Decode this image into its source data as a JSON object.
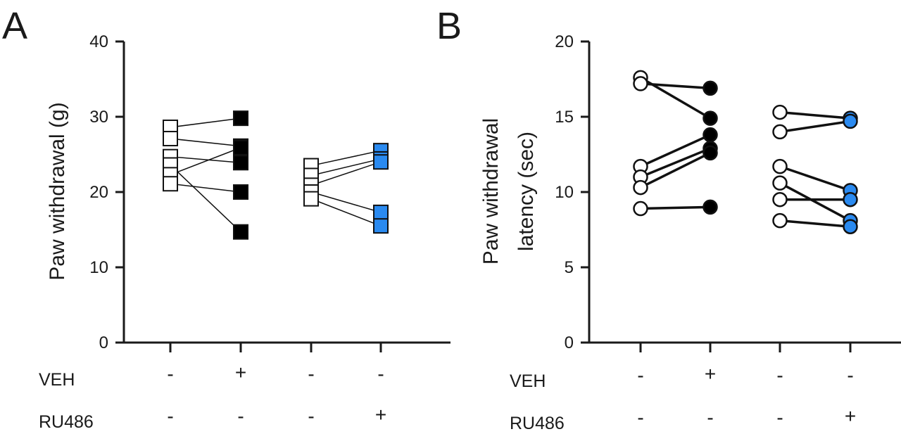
{
  "chart_data": [
    {
      "type": "scatter",
      "panel_label": "A",
      "ylabel": "Paw withdrawal (g)",
      "ylim": [
        0,
        40
      ],
      "yticks": [
        0,
        10,
        20,
        30,
        40
      ],
      "marker": "square",
      "groups": [
        "1",
        "2",
        "3",
        "4"
      ],
      "conditions": [
        {
          "label": "VEH",
          "signs": [
            "-",
            "+",
            "-",
            "-"
          ]
        },
        {
          "label": "RU486",
          "signs": [
            "-",
            "-",
            "-",
            "+"
          ]
        }
      ],
      "marker_fill": [
        "#ffffff",
        "#000000",
        "#ffffff",
        "#2a8af0"
      ],
      "pairs": [
        {
          "from_group": 0,
          "to_group": 1,
          "pairs": [
            [
              28.6,
              29.8
            ],
            [
              27.1,
              26.1
            ],
            [
              24.7,
              23.9
            ],
            [
              23.6,
              14.7
            ],
            [
              22.3,
              25.9
            ],
            [
              21.1,
              20.0
            ]
          ]
        },
        {
          "from_group": 2,
          "to_group": 3,
          "pairs": [
            [
              23.5,
              25.5
            ],
            [
              22.2,
              24.4
            ],
            [
              20.9,
              24.0
            ],
            [
              20.0,
              17.3
            ],
            [
              19.1,
              15.5
            ]
          ]
        }
      ]
    },
    {
      "type": "scatter",
      "panel_label": "B",
      "ylabel_lines": [
        "Paw withdrawal",
        "latency (sec)"
      ],
      "ylim": [
        0,
        20
      ],
      "yticks": [
        0,
        5,
        10,
        15,
        20
      ],
      "marker": "circle",
      "groups": [
        "1",
        "2",
        "3",
        "4"
      ],
      "conditions": [
        {
          "label": "VEH",
          "signs": [
            "-",
            "+",
            "-",
            "-"
          ]
        },
        {
          "label": "RU486",
          "signs": [
            "-",
            "-",
            "-",
            "+"
          ]
        }
      ],
      "marker_fill": [
        "#ffffff",
        "#000000",
        "#ffffff",
        "#2a8af0"
      ],
      "pairs": [
        {
          "from_group": 0,
          "to_group": 1,
          "pairs": [
            [
              17.6,
              14.9
            ],
            [
              17.2,
              16.9
            ],
            [
              11.7,
              13.8
            ],
            [
              11.0,
              12.9
            ],
            [
              10.3,
              12.6
            ],
            [
              8.9,
              9.0
            ]
          ]
        },
        {
          "from_group": 2,
          "to_group": 3,
          "pairs": [
            [
              15.3,
              14.9
            ],
            [
              14.0,
              14.7
            ],
            [
              11.7,
              10.1
            ],
            [
              10.6,
              8.1
            ],
            [
              9.5,
              9.5
            ],
            [
              8.1,
              7.7
            ]
          ]
        }
      ]
    }
  ]
}
